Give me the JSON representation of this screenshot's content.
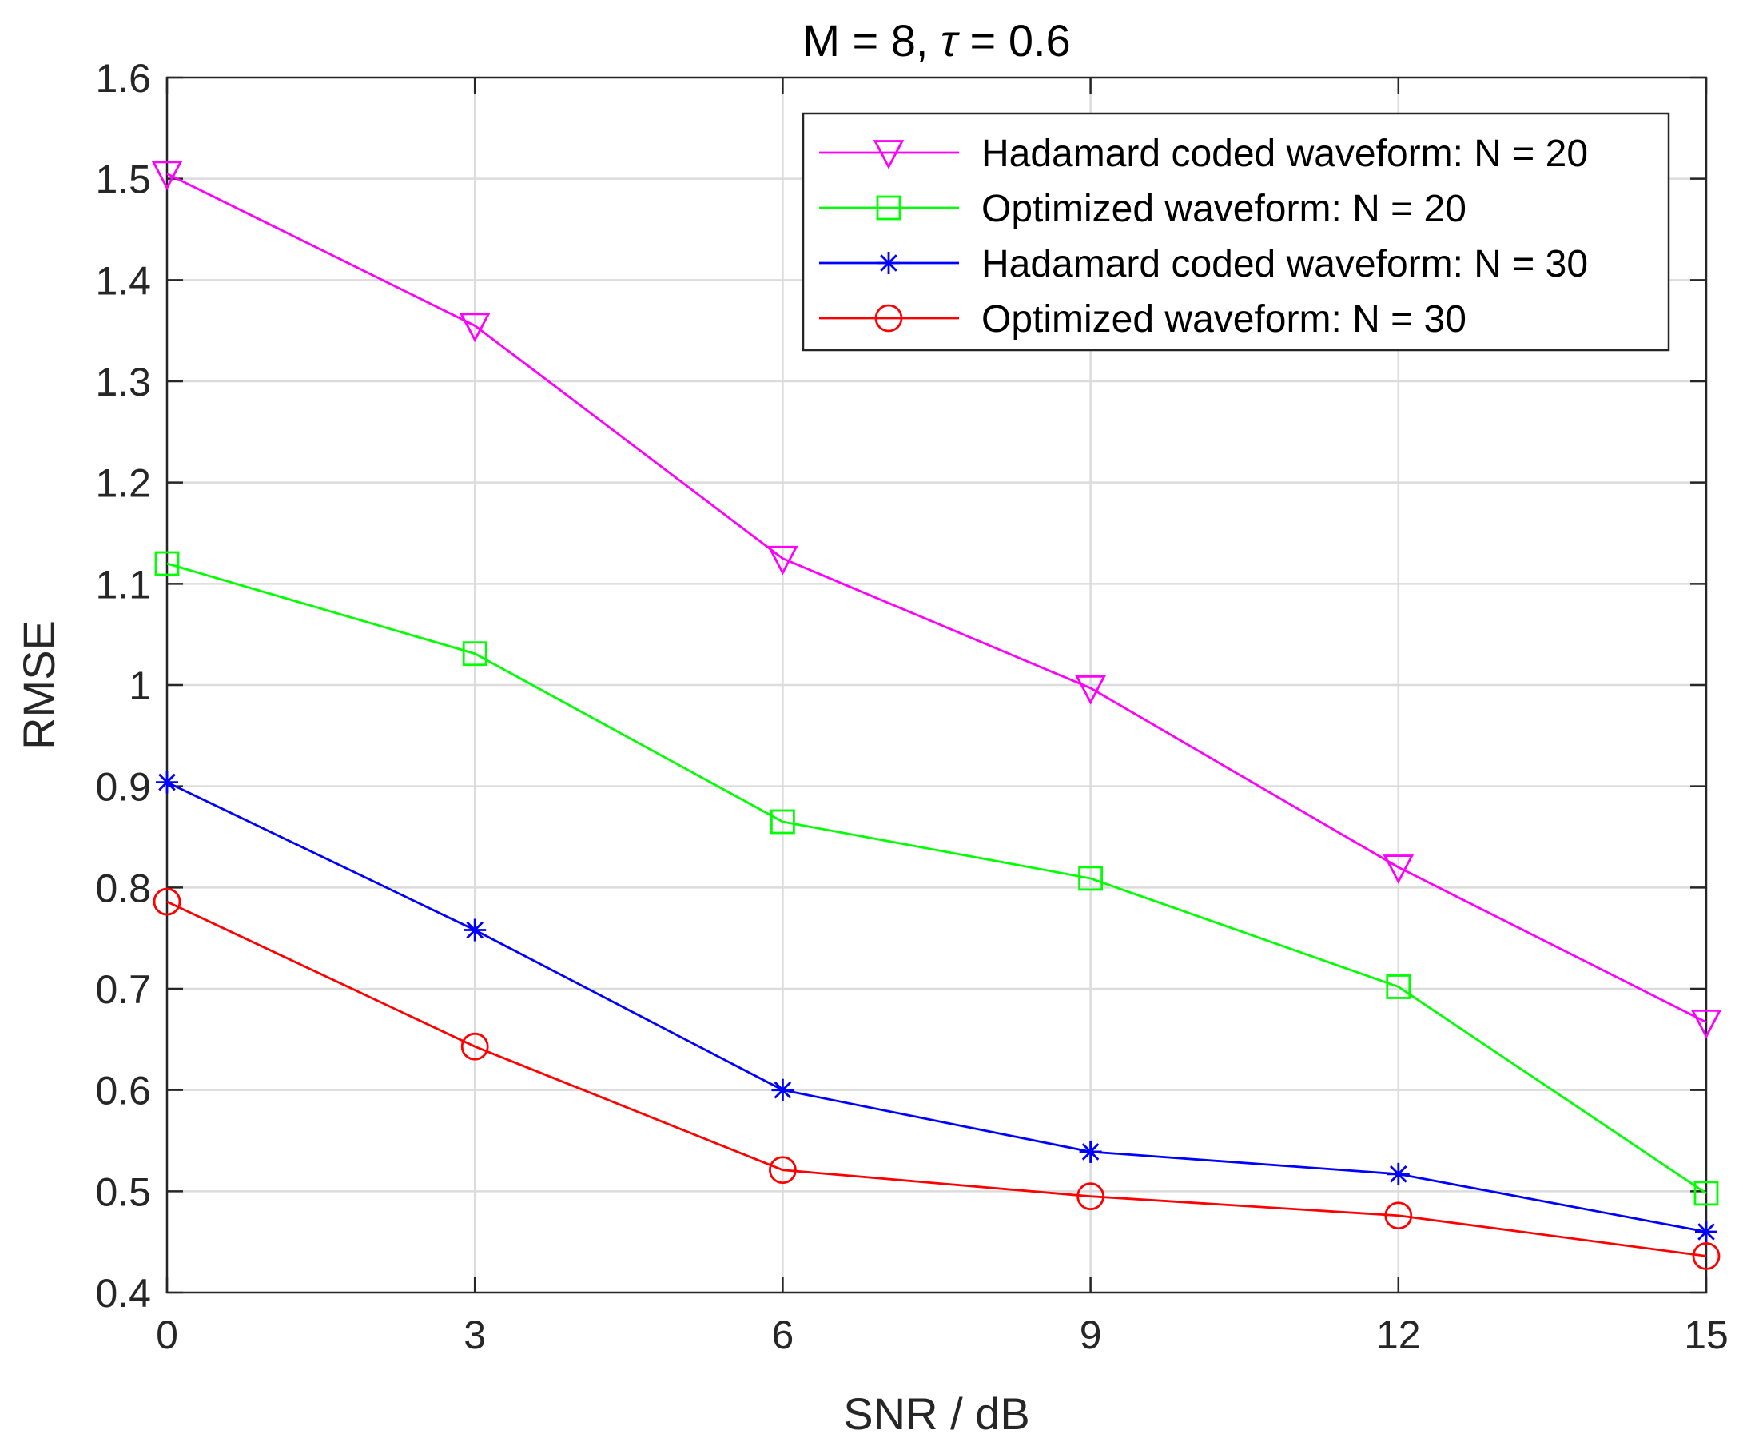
{
  "chart_data": {
    "type": "line",
    "title": "M = 8, τ = 0.6",
    "title_parts": {
      "prefix": "M = 8, ",
      "symbol": "τ",
      "suffix": " = 0.6"
    },
    "xlabel": "SNR / dB",
    "ylabel": "RMSE",
    "x": [
      0,
      3,
      6,
      9,
      12,
      15
    ],
    "xlim": [
      0,
      15
    ],
    "ylim": [
      0.4,
      1.6
    ],
    "xticks": [
      0,
      3,
      6,
      9,
      12,
      15
    ],
    "xtick_labels": [
      "0",
      "3",
      "6",
      "9",
      "12",
      "15"
    ],
    "yticks": [
      0.4,
      0.5,
      0.6,
      0.7,
      0.8,
      0.9,
      1.0,
      1.1,
      1.2,
      1.3,
      1.4,
      1.5,
      1.6
    ],
    "ytick_labels": [
      "0.4",
      "0.5",
      "0.6",
      "0.7",
      "0.8",
      "0.9",
      "1",
      "1.1",
      "1.2",
      "1.3",
      "1.4",
      "1.5",
      "1.6"
    ],
    "grid": true,
    "legend_position": "top-right",
    "series": [
      {
        "name": "Hadamard coded waveform: N = 20",
        "color": "#ff00ff",
        "marker": "triangle-down",
        "values": [
          1.505,
          1.355,
          1.125,
          0.997,
          0.82,
          0.667
        ]
      },
      {
        "name": "Optimized waveform: N = 20",
        "color": "#00ff00",
        "marker": "square",
        "values": [
          1.12,
          1.031,
          0.865,
          0.809,
          0.702,
          0.498
        ]
      },
      {
        "name": "Hadamard coded waveform: N = 30",
        "color": "#0000ff",
        "marker": "asterisk",
        "values": [
          0.904,
          0.758,
          0.6,
          0.539,
          0.517,
          0.46
        ]
      },
      {
        "name": "Optimized waveform: N = 30",
        "color": "#ff0000",
        "marker": "circle",
        "values": [
          0.786,
          0.643,
          0.521,
          0.495,
          0.476,
          0.436
        ]
      }
    ]
  }
}
